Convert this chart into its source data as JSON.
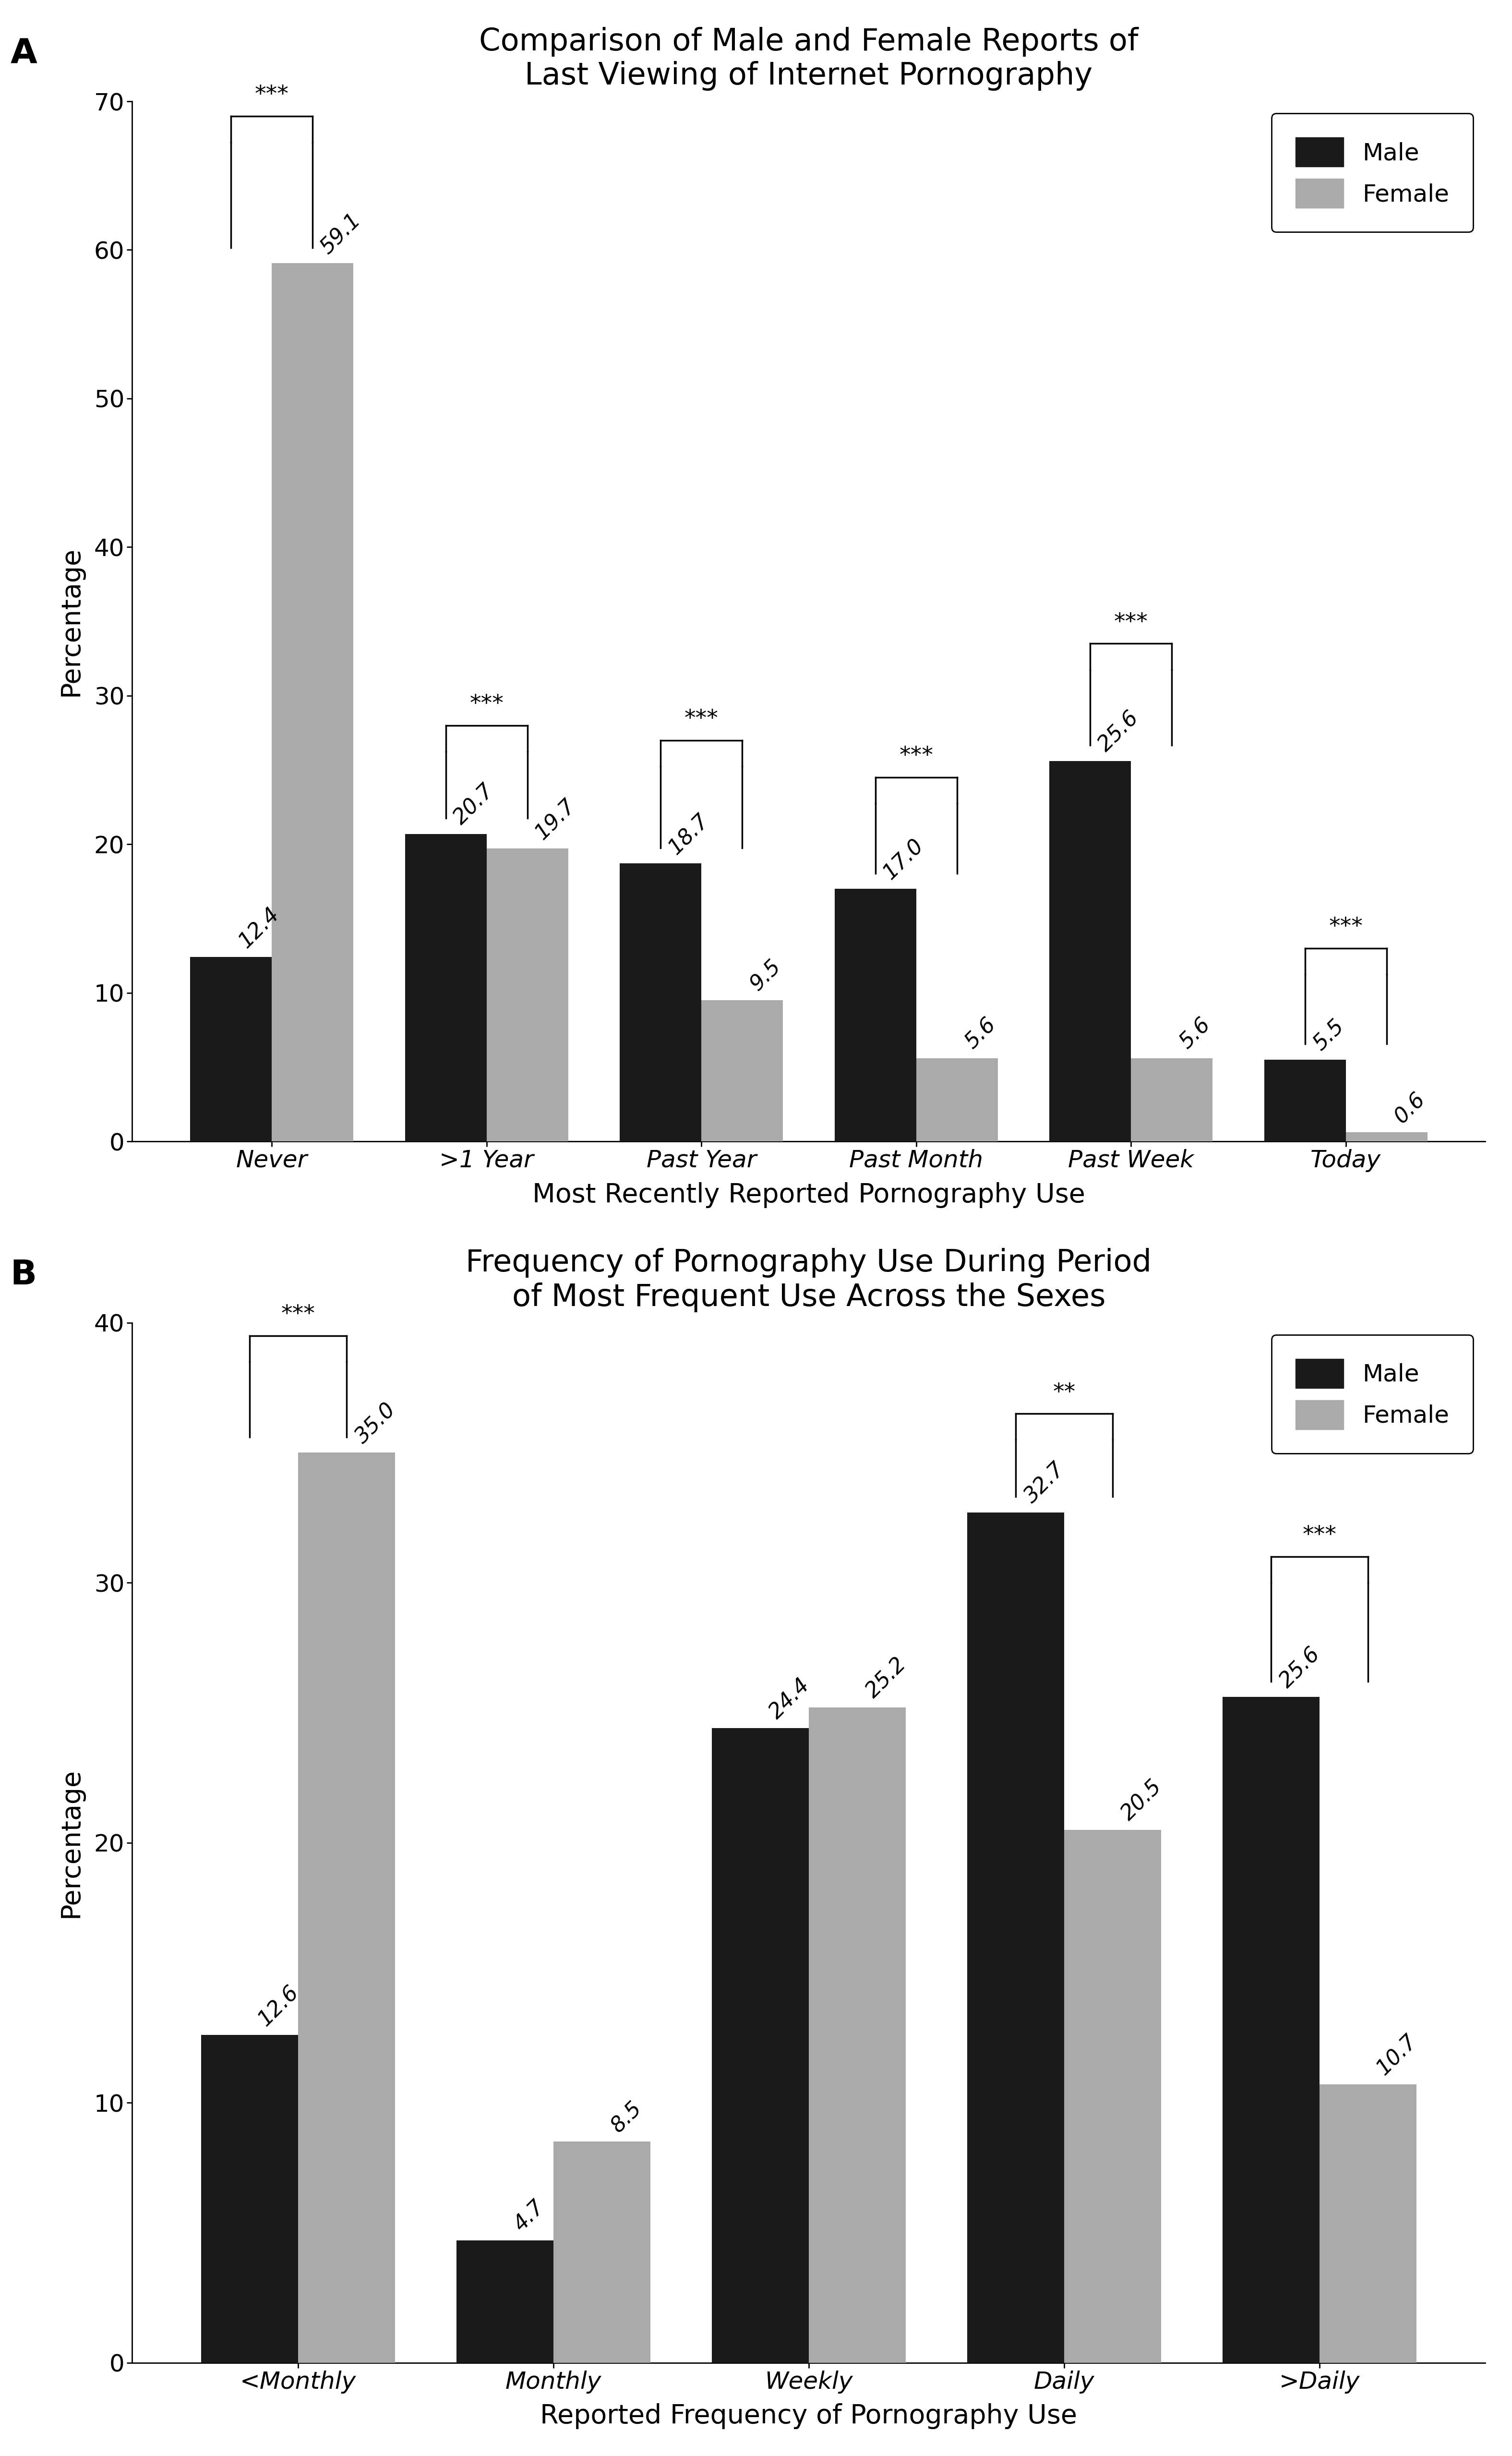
{
  "chart_A": {
    "title": "Comparison of Male and Female Reports of\nLast Viewing of Internet Pornography",
    "xlabel": "Most Recently Reported Pornography Use",
    "ylabel": "Percentage",
    "categories": [
      "Never",
      ">1 Year",
      "Past Year",
      "Past Month",
      "Past Week",
      "Today"
    ],
    "male_values": [
      12.4,
      20.7,
      18.7,
      17.0,
      25.6,
      5.5
    ],
    "female_values": [
      59.1,
      19.7,
      9.5,
      5.6,
      5.6,
      0.6
    ],
    "ylim": [
      0,
      70
    ],
    "yticks": [
      0,
      10,
      20,
      30,
      40,
      50,
      60,
      70
    ],
    "significance": [
      "***",
      "***",
      "***",
      "***",
      "***",
      "***"
    ],
    "sig_bracket_top": [
      69.0,
      28.0,
      27.0,
      24.5,
      33.5,
      13.0
    ],
    "panel_label": "A"
  },
  "chart_B": {
    "title": "Frequency of Pornography Use During Period\nof Most Frequent Use Across the Sexes",
    "xlabel": "Reported Frequency of Pornography Use",
    "ylabel": "Percentage",
    "categories": [
      "<Monthly",
      "Monthly",
      "Weekly",
      "Daily",
      ">Daily"
    ],
    "male_values": [
      12.6,
      4.7,
      24.4,
      32.7,
      25.6
    ],
    "female_values": [
      35.0,
      8.5,
      25.2,
      20.5,
      10.7
    ],
    "ylim": [
      0,
      40
    ],
    "yticks": [
      0,
      10,
      20,
      30,
      40
    ],
    "significance": [
      "***",
      "",
      "",
      "**",
      "***"
    ],
    "sig_bracket_top": [
      39.5,
      0,
      0,
      36.5,
      31.0
    ],
    "panel_label": "B"
  },
  "male_color": "#1a1a1a",
  "female_color": "#aaaaaa",
  "bar_width": 0.38,
  "background_color": "#ffffff",
  "title_fontsize": 46,
  "label_fontsize": 40,
  "tick_fontsize": 36,
  "value_fontsize": 32,
  "legend_fontsize": 36,
  "sig_fontsize": 34,
  "panel_label_fontsize": 52
}
